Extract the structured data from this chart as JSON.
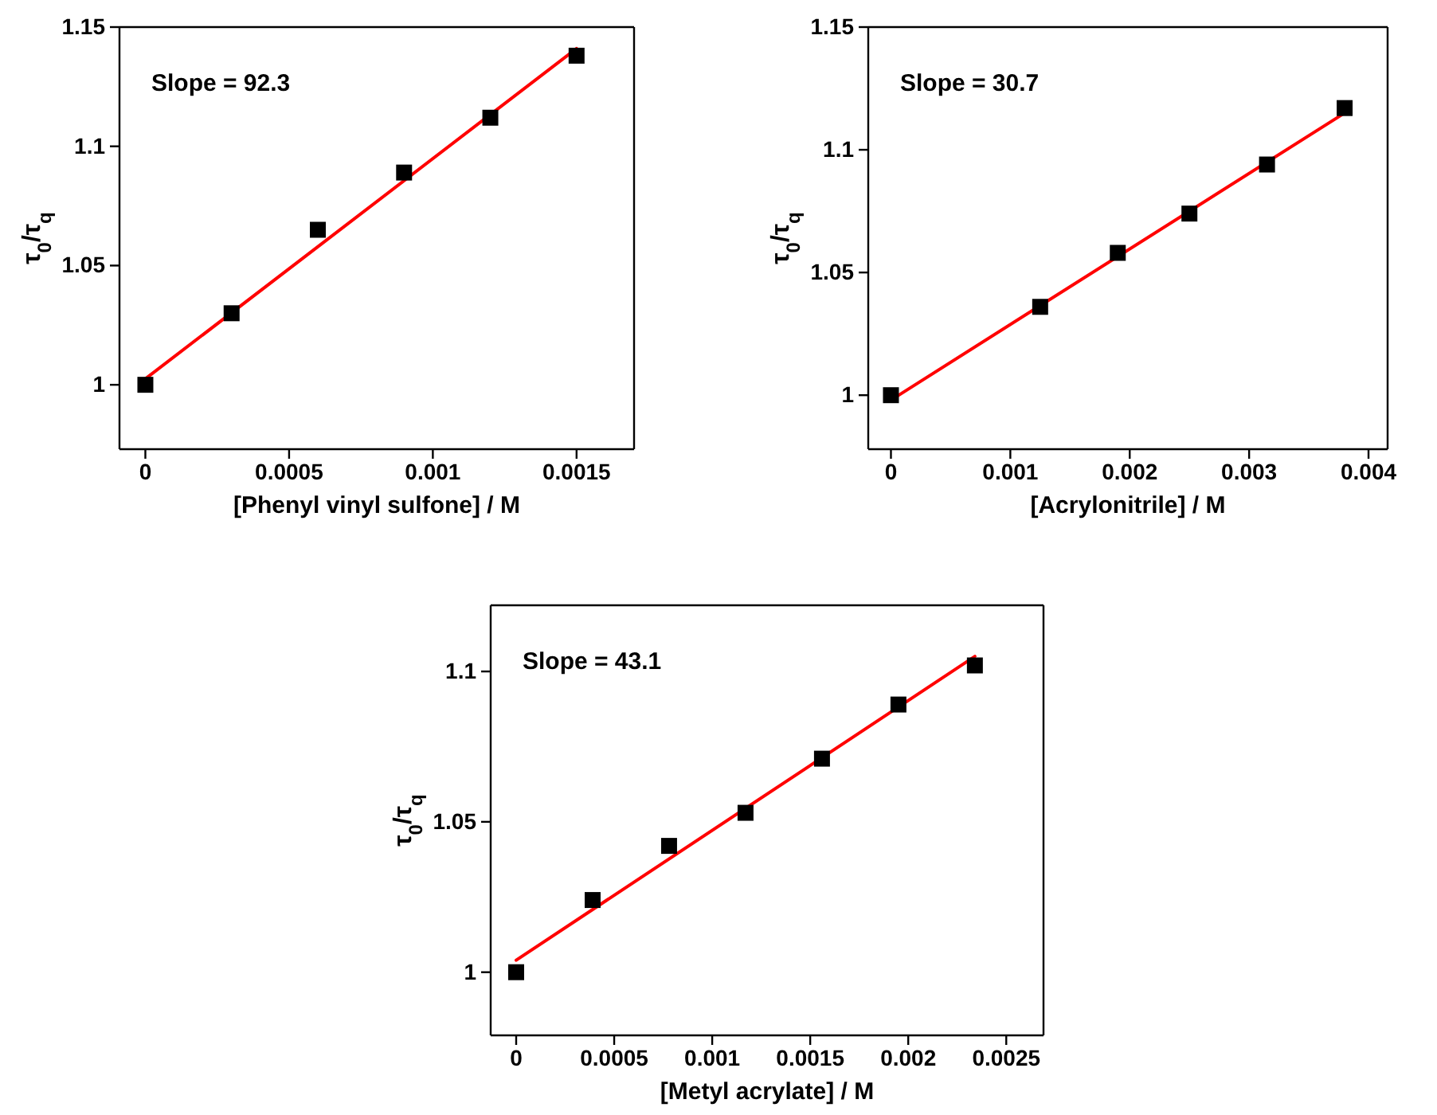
{
  "chart_data": [
    {
      "type": "scatter",
      "xlabel": "[Phenyl vinyl sulfone] / M",
      "ylabel": "τ$_{0}$/τ$_{q}$",
      "annotations": [
        "Slope = 92.3"
      ],
      "xlim": [
        -9e-05,
        0.0017
      ],
      "ylim": [
        0.973,
        1.15
      ],
      "xticks": [
        0,
        0.0005,
        0.001,
        0.0015
      ],
      "yticks": [
        1,
        1.05,
        1.1,
        1.15
      ],
      "grid": false,
      "series": [
        {
          "color": "#000000",
          "marker": "square",
          "x": [
            0,
            0.0003,
            0.0006,
            0.0009,
            0.0012,
            0.0015
          ],
          "values": [
            1.0,
            1.03,
            1.065,
            1.089,
            1.112,
            1.138
          ]
        },
        {
          "type": "line",
          "color": "#ff0000",
          "x": [
            0,
            0.0015
          ],
          "values": [
            1.0025,
            1.141
          ]
        }
      ]
    },
    {
      "type": "scatter",
      "xlabel": "[Acrylonitrile] / M",
      "ylabel": "τ$_{0}$/τ$_{q}$",
      "annotations": [
        "Slope = 30.7"
      ],
      "xlim": [
        -0.00019,
        0.00416
      ],
      "ylim": [
        0.978,
        1.15
      ],
      "xticks": [
        0,
        0.001,
        0.002,
        0.003,
        0.004
      ],
      "yticks": [
        1,
        1.05,
        1.1,
        1.15
      ],
      "grid": false,
      "series": [
        {
          "color": "#000000",
          "marker": "square",
          "x": [
            0,
            0.00125,
            0.0019,
            0.0025,
            0.00315,
            0.0038
          ],
          "values": [
            1.0,
            1.036,
            1.058,
            1.074,
            1.094,
            1.117
          ]
        },
        {
          "type": "line",
          "color": "#ff0000",
          "x": [
            0,
            0.0038
          ],
          "values": [
            0.998,
            1.115
          ]
        }
      ]
    },
    {
      "type": "scatter",
      "xlabel": "[Metyl acrylate] / M",
      "ylabel": "τ$_{0}$/τ$_{q}$",
      "annotations": [
        "Slope = 43.1"
      ],
      "xlim": [
        -0.00013,
        0.00269
      ],
      "ylim": [
        0.979,
        1.122
      ],
      "xticks": [
        0,
        0.0005,
        0.001,
        0.0015,
        0.002,
        0.0025
      ],
      "yticks": [
        1,
        1.05,
        1.1
      ],
      "grid": false,
      "series": [
        {
          "color": "#000000",
          "marker": "square",
          "x": [
            0,
            0.00039,
            0.00078,
            0.00117,
            0.00156,
            0.00195,
            0.00234
          ],
          "values": [
            1.0,
            1.024,
            1.042,
            1.053,
            1.071,
            1.089,
            1.102
          ]
        },
        {
          "type": "line",
          "color": "#ff0000",
          "x": [
            0,
            0.00234
          ],
          "values": [
            1.004,
            1.105
          ]
        }
      ]
    }
  ]
}
